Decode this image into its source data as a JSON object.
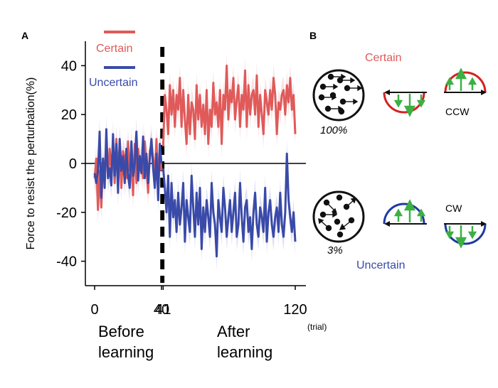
{
  "panels": {
    "a_label": "A",
    "b_label": "B"
  },
  "colors": {
    "certain": "#e05a5a",
    "uncertain": "#3a4aa8",
    "arrow_green": "#3cb043",
    "band_certain": "#f5c9cd",
    "band_uncertain": "#c9cbec"
  },
  "chart_data": {
    "type": "line",
    "ylabel": "Force to resist the perturbation(%)",
    "xlabel": "",
    "ylim": [
      -50,
      50
    ],
    "xlim": [
      -4,
      124
    ],
    "y_ticks": [
      40,
      20,
      0,
      -20,
      -40
    ],
    "y_tick_labels": [
      "40",
      "20",
      "0",
      "-20",
      "-40"
    ],
    "x_ticks": [
      0,
      40,
      41,
      120
    ],
    "x_tick_labels": [
      "0",
      "40",
      "41",
      "120"
    ],
    "x_unit": "(trial)",
    "dashed_lines_at": [
      40,
      41
    ],
    "phase_labels": {
      "before_1": "Before",
      "before_2": "learning",
      "after_1": "After",
      "after_2": "learning"
    },
    "legend": [
      {
        "label": "Certain",
        "color": "#e05a5a"
      },
      {
        "label": "Uncertain",
        "color": "#3a4aa8"
      }
    ],
    "series": [
      {
        "name": "Certain",
        "color": "#e05a5a",
        "x_before": [
          0,
          1,
          2,
          3,
          4,
          5,
          6,
          7,
          8,
          9,
          10,
          11,
          12,
          13,
          14,
          15,
          16,
          17,
          18,
          19,
          20,
          21,
          22,
          23,
          24,
          25,
          26,
          27,
          28,
          29,
          30,
          31,
          32,
          33,
          34,
          35,
          36,
          37,
          38,
          39,
          40
        ],
        "y_before": [
          -6,
          2,
          -19,
          -3,
          -18,
          0,
          -4,
          8,
          -6,
          6,
          -2,
          5,
          -8,
          10,
          -4,
          7,
          -10,
          5,
          2,
          -6,
          9,
          -3,
          0,
          -13,
          8,
          -8,
          6,
          -3,
          2,
          -6,
          9,
          -2,
          -12,
          5,
          8,
          2,
          -5,
          10,
          -8,
          6,
          -3
        ],
        "x_after": [
          41,
          42,
          43,
          44,
          45,
          46,
          47,
          48,
          49,
          50,
          51,
          52,
          53,
          54,
          55,
          56,
          57,
          58,
          59,
          60,
          61,
          62,
          63,
          64,
          65,
          66,
          67,
          68,
          69,
          70,
          71,
          72,
          73,
          74,
          75,
          76,
          77,
          78,
          79,
          80,
          81,
          82,
          83,
          84,
          85,
          86,
          87,
          88,
          89,
          90,
          91,
          92,
          93,
          94,
          95,
          96,
          97,
          98,
          99,
          100,
          101,
          102,
          103,
          104,
          105,
          106,
          107,
          108,
          109,
          110,
          111,
          112,
          113,
          114,
          115,
          116,
          117,
          118,
          119,
          120
        ],
        "y_after": [
          7,
          28,
          22,
          12,
          32,
          20,
          30,
          15,
          28,
          22,
          35,
          15,
          30,
          18,
          8,
          28,
          12,
          25,
          22,
          10,
          32,
          18,
          28,
          15,
          24,
          12,
          30,
          8,
          22,
          15,
          33,
          20,
          25,
          15,
          30,
          8,
          28,
          22,
          40,
          18,
          30,
          25,
          35,
          18,
          26,
          32,
          15,
          28,
          22,
          38,
          15,
          32,
          20,
          28,
          30,
          20,
          36,
          15,
          28,
          20,
          12,
          30,
          25,
          20,
          30,
          22,
          35,
          28,
          12,
          25,
          22,
          28,
          30,
          20,
          32,
          25,
          35,
          22,
          28,
          12
        ]
      },
      {
        "name": "Uncertain",
        "color": "#3a4aa8",
        "x_before": [
          0,
          1,
          2,
          3,
          4,
          5,
          6,
          7,
          8,
          9,
          10,
          11,
          12,
          13,
          14,
          15,
          16,
          17,
          18,
          19,
          20,
          21,
          22,
          23,
          24,
          25,
          26,
          27,
          28,
          29,
          30,
          31,
          32,
          33,
          34,
          35,
          36,
          37,
          38,
          39,
          40
        ],
        "y_before": [
          -4,
          -8,
          -3,
          13,
          -14,
          2,
          -10,
          14,
          -6,
          -2,
          -9,
          12,
          -5,
          8,
          -12,
          10,
          -3,
          3,
          -8,
          6,
          -5,
          -10,
          9,
          -5,
          0,
          13,
          -7,
          3,
          -4,
          11,
          -6,
          4,
          -8,
          2,
          10,
          -2,
          -10,
          4,
          -15,
          8,
          0
        ],
        "x_after": [
          41,
          42,
          43,
          44,
          45,
          46,
          47,
          48,
          49,
          50,
          51,
          52,
          53,
          54,
          55,
          56,
          57,
          58,
          59,
          60,
          61,
          62,
          63,
          64,
          65,
          66,
          67,
          68,
          69,
          70,
          71,
          72,
          73,
          74,
          75,
          76,
          77,
          78,
          79,
          80,
          81,
          82,
          83,
          84,
          85,
          86,
          87,
          88,
          89,
          90,
          91,
          92,
          93,
          94,
          95,
          96,
          97,
          98,
          99,
          100,
          101,
          102,
          103,
          104,
          105,
          106,
          107,
          108,
          109,
          110,
          111,
          112,
          113,
          114,
          115,
          116,
          117,
          118,
          119,
          120
        ],
        "y_after": [
          -2,
          -10,
          -20,
          -5,
          -30,
          -8,
          -22,
          -15,
          -28,
          -12,
          -25,
          -18,
          -8,
          -32,
          -15,
          -22,
          -28,
          -5,
          -18,
          -30,
          -12,
          -25,
          -10,
          -35,
          -18,
          -28,
          -15,
          -22,
          -30,
          -8,
          -20,
          -25,
          -38,
          -15,
          -22,
          -28,
          -10,
          -18,
          -30,
          -22,
          -15,
          -28,
          -20,
          -12,
          -30,
          -25,
          -8,
          -22,
          -32,
          -18,
          -15,
          -28,
          -22,
          -35,
          -20,
          -12,
          -25,
          -30,
          -18,
          -22,
          -28,
          -10,
          -32,
          -20,
          -15,
          -25,
          -30,
          -22,
          -18,
          -28,
          -12,
          -25,
          -30,
          -20,
          4,
          -15,
          -22,
          -28,
          -20,
          -32
        ]
      }
    ]
  },
  "panel_b": {
    "certain_label": "Certain",
    "uncertain_label": "Uncertain",
    "certain_percent": "100%",
    "uncertain_percent": "3%",
    "ccw_label": "CCW",
    "cw_label": "CW"
  }
}
